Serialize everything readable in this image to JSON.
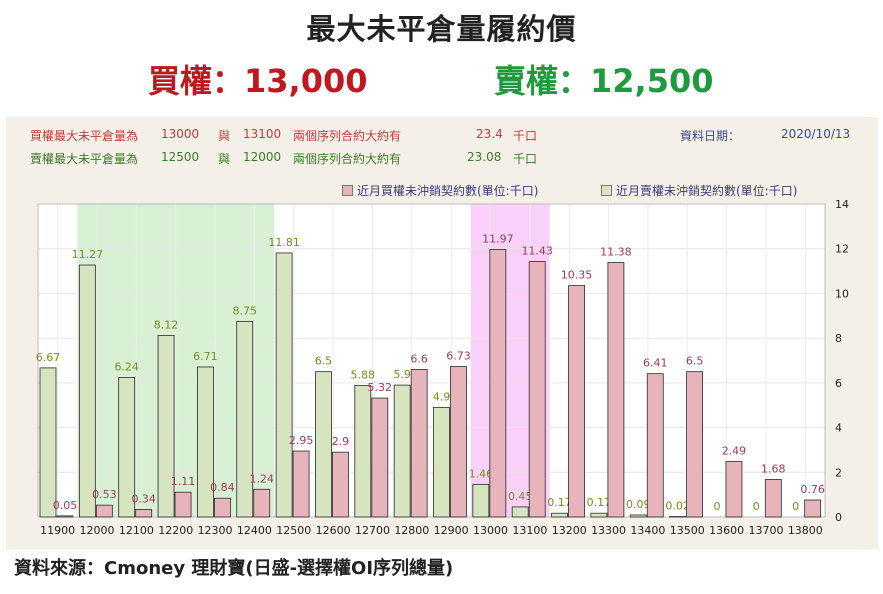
{
  "header": {
    "title": "最大未平倉量履約價",
    "call": "買權：13,000",
    "put": "賣權：12,500"
  },
  "info": {
    "call_row": {
      "label": "買權最大未平倉量為",
      "strike1": "13000",
      "conj": "與",
      "strike2": "13100",
      "text": "兩個序列合約大約有",
      "value": "23.4",
      "unit": "千口"
    },
    "put_row": {
      "label": "賣權最大未平倉量為",
      "strike1": "12500",
      "conj": "與",
      "strike2": "12000",
      "text": "兩個序列合約大約有",
      "value": "23.08",
      "unit": "千口"
    },
    "date_label": "資料日期：",
    "date_value": "2020/10/13"
  },
  "legend": {
    "call": "近月買權未沖銷契約數(單位:千口)",
    "put": "近月賣權未沖銷契約數(單位:千口)"
  },
  "source": "資料來源：Cmoney 理財寶(日盛-選擇權OI序列總量)",
  "colors": {
    "call_fill": "#e8b4bb",
    "put_fill": "#d6e4c0",
    "call_label": "#9c3a5a",
    "put_label": "#7a8a1e",
    "put_band": "#d8f0d4",
    "call_band": "#f9d0f7"
  },
  "chart_data": {
    "type": "bar",
    "categories": [
      "11900",
      "12000",
      "12100",
      "12200",
      "12300",
      "12400",
      "12500",
      "12600",
      "12700",
      "12800",
      "12900",
      "13000",
      "13100",
      "13200",
      "13300",
      "13400",
      "13500",
      "13600",
      "13700",
      "13800"
    ],
    "series": [
      {
        "name": "近月買權未沖銷契約數(單位:千口)",
        "values": [
          0.05,
          0.53,
          0.34,
          1.11,
          0.84,
          1.24,
          2.95,
          2.9,
          5.32,
          6.6,
          6.73,
          11.97,
          11.43,
          10.35,
          11.38,
          6.41,
          6.5,
          2.49,
          1.68,
          0.76
        ]
      },
      {
        "name": "近月賣權未沖銷契約數(單位:千口)",
        "values": [
          6.67,
          11.27,
          6.24,
          8.12,
          6.71,
          8.75,
          11.81,
          6.5,
          5.88,
          5.9,
          4.9,
          1.46,
          0.45,
          0.17,
          0.17,
          0.09,
          0.02,
          0,
          0,
          0
        ]
      }
    ],
    "call_labels": [
      "0.05",
      "0.53",
      "0.34",
      "1.11",
      "0.84",
      "1.24",
      "2.95",
      "2.9",
      "5.32",
      "6.6",
      "6.73",
      "11.97",
      "11.43",
      "10.35",
      "11.38",
      "6.41",
      "6.5",
      "2.49",
      "1.68",
      "0.76"
    ],
    "put_labels": [
      "6.67",
      "11.27",
      "6.24",
      "8.12",
      "6.71",
      "8.75",
      "11.81",
      "6.5",
      "5.88",
      "5.9",
      "4.9",
      "1.46",
      "0.45",
      "0.17",
      "0.17",
      "0.09",
      "0.02",
      "0",
      "0",
      "0"
    ],
    "y_ticks": [
      "0",
      "2",
      "4",
      "6",
      "8",
      "10",
      "12",
      "14"
    ],
    "ylim": [
      0,
      14
    ],
    "grid": true,
    "legend_position": "top-right",
    "highlight_put_range": [
      "12000",
      "12400"
    ],
    "highlight_call_range": [
      "13000",
      "13100"
    ]
  }
}
